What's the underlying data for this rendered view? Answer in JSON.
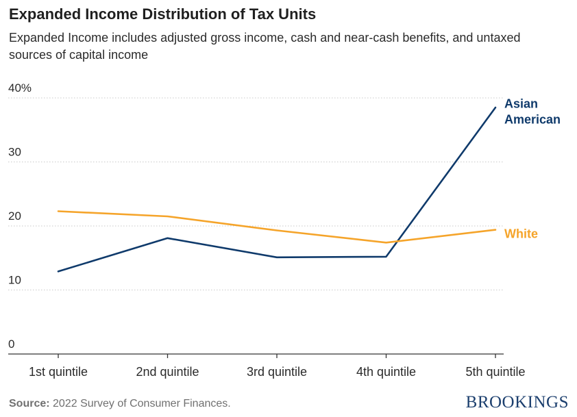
{
  "header": {
    "title": "Expanded Income Distribution of Tax Units",
    "subtitle": "Expanded Income includes adjusted gross income, cash and near-cash benefits, and untaxed sources of capital income"
  },
  "footer": {
    "source_label": "Source:",
    "source_text": "2022 Survey of Consumer Finances.",
    "brand": "BROOKINGS"
  },
  "colors": {
    "asian_american": "#0f3a6b",
    "white": "#f5a42a",
    "grid": "#c8c8c8",
    "axis": "#333333",
    "brand": "#1c3f6e"
  },
  "chart_data": {
    "type": "line",
    "title": "Expanded Income Distribution of Tax Units",
    "subtitle": "Expanded Income includes adjusted gross income, cash and near-cash benefits, and untaxed sources of capital income",
    "xlabel": "",
    "ylabel": "",
    "categories": [
      "1st quintile",
      "2nd quintile",
      "3rd quintile",
      "4th quintile",
      "5th quintile"
    ],
    "ylim": [
      0,
      40
    ],
    "yticks": [
      0,
      10,
      20,
      30,
      40
    ],
    "ytick_labels": [
      "0",
      "10",
      "20",
      "30",
      "40%"
    ],
    "grid": true,
    "legend": "direct labels at line ends",
    "series": [
      {
        "name": "Asian American",
        "label_lines": [
          "Asian",
          "American"
        ],
        "color": "#0f3a6b",
        "values": [
          12.9,
          18.1,
          15.1,
          15.2,
          38.5
        ]
      },
      {
        "name": "White",
        "label_lines": [
          "White"
        ],
        "color": "#f5a42a",
        "values": [
          22.3,
          21.5,
          19.3,
          17.4,
          19.4
        ]
      }
    ]
  }
}
